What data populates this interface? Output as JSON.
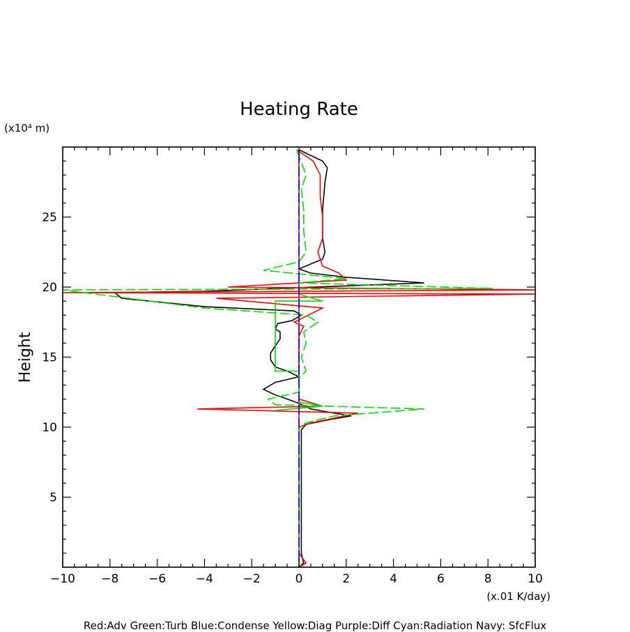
{
  "chart_data": {
    "type": "line",
    "title": "Heating Rate",
    "ylabel": "Height",
    "yunit": "(x10⁴ m)",
    "xunit": "(x.01 K/day)",
    "xlim": [
      -10,
      10
    ],
    "ylim": [
      0,
      30
    ],
    "xticks": [
      -10,
      -8,
      -6,
      -4,
      -2,
      0,
      2,
      4,
      6,
      8,
      10
    ],
    "yticks": [
      5,
      10,
      15,
      20,
      25
    ],
    "grid": false,
    "legend_text": "Red:Adv  Green:Turb  Blue:Condense  Yellow:Diag  Purple:Diff  Cyan:Radiation  Navy: SfcFlux",
    "colors": {
      "black": "#000000",
      "red": "#ff0000",
      "green": "#00dd00",
      "blue": "#0000ff"
    },
    "series": [
      {
        "color": "#000000",
        "dash": "solid",
        "points": [
          [
            0,
            0
          ],
          [
            0.2,
            0.3
          ],
          [
            0.1,
            1
          ],
          [
            0.1,
            5
          ],
          [
            0.1,
            9
          ],
          [
            0.1,
            9.8
          ],
          [
            0.3,
            10.2
          ],
          [
            1.5,
            10.6
          ],
          [
            2.2,
            10.8
          ],
          [
            1.5,
            11
          ],
          [
            0.5,
            11.3
          ],
          [
            0,
            11.7
          ],
          [
            -0.5,
            12
          ],
          [
            -1,
            12.3
          ],
          [
            -1.5,
            12.7
          ],
          [
            -1,
            13.2
          ],
          [
            0,
            13.6
          ],
          [
            -0.5,
            14
          ],
          [
            -1,
            14.3
          ],
          [
            -1.2,
            14.8
          ],
          [
            -1.2,
            15.3
          ],
          [
            -1,
            15.8
          ],
          [
            -0.8,
            16.3
          ],
          [
            -0.8,
            16.8
          ],
          [
            -1,
            17
          ],
          [
            -0.9,
            17.4
          ],
          [
            -0.3,
            17.6
          ],
          [
            0.1,
            18
          ],
          [
            -0.2,
            18.3
          ],
          [
            -4,
            18.6
          ],
          [
            -7.5,
            19.2
          ],
          [
            -7.8,
            19.6
          ],
          [
            -4,
            19.7
          ],
          [
            5.3,
            20.3
          ],
          [
            2,
            20.7
          ],
          [
            0.5,
            21
          ],
          [
            0,
            21.3
          ],
          [
            1,
            22
          ],
          [
            1.1,
            22.5
          ],
          [
            1,
            23.5
          ],
          [
            1,
            25.5
          ],
          [
            1.1,
            27.5
          ],
          [
            1.2,
            28.5
          ],
          [
            1,
            29
          ],
          [
            0.5,
            29.4
          ],
          [
            0,
            29.8
          ]
        ]
      },
      {
        "color": "#ff0000",
        "dash": "solid",
        "points": [
          [
            0,
            0
          ],
          [
            0.3,
            0.3
          ],
          [
            0,
            1
          ],
          [
            0,
            9
          ],
          [
            0,
            10
          ],
          [
            0.5,
            10.3
          ],
          [
            2.5,
            11
          ],
          [
            -4.3,
            11.3
          ],
          [
            1,
            11.5
          ],
          [
            0,
            12
          ],
          [
            0,
            13.5
          ],
          [
            0,
            14.5
          ],
          [
            0,
            15.5
          ],
          [
            0,
            16.5
          ],
          [
            0.2,
            17.2
          ],
          [
            -0.2,
            17.5
          ],
          [
            1,
            18.5
          ],
          [
            -3.5,
            19.2
          ],
          [
            10,
            19.5
          ],
          [
            -10,
            19.6
          ],
          [
            10,
            19.8
          ],
          [
            -3,
            20
          ],
          [
            2,
            20.5
          ],
          [
            1.7,
            21
          ],
          [
            1,
            21.5
          ],
          [
            0.8,
            22.5
          ],
          [
            1,
            23.5
          ],
          [
            1,
            25
          ],
          [
            0.9,
            26.5
          ],
          [
            0.9,
            28
          ],
          [
            0.6,
            29
          ],
          [
            -0.1,
            29.8
          ]
        ]
      },
      {
        "color": "#ff0000",
        "dash": "solid",
        "points": [
          [
            0,
            0
          ],
          [
            0,
            29.8
          ]
        ]
      },
      {
        "color": "#00dd00",
        "dash": "solid",
        "points": [
          [
            -1,
            11.2
          ],
          [
            1,
            11.5
          ],
          [
            0,
            11.8
          ],
          [
            0,
            14
          ],
          [
            -1,
            14
          ],
          [
            -1,
            19
          ],
          [
            1,
            19
          ],
          [
            0,
            19.5
          ]
        ]
      },
      {
        "color": "#00dd00",
        "dash": "dashed",
        "points": [
          [
            0,
            0
          ],
          [
            0,
            10
          ],
          [
            0.3,
            10.3
          ],
          [
            1.5,
            10.8
          ],
          [
            5.3,
            11.3
          ],
          [
            -1,
            11.6
          ],
          [
            -1.3,
            12
          ],
          [
            0,
            12.5
          ],
          [
            0,
            13.5
          ],
          [
            0.3,
            14
          ],
          [
            0.1,
            15
          ],
          [
            0.3,
            16
          ],
          [
            0.2,
            16.8
          ],
          [
            0.8,
            17.5
          ],
          [
            0.3,
            18
          ],
          [
            -4,
            18.5
          ],
          [
            -10,
            19.8
          ],
          [
            8.2,
            19.9
          ],
          [
            0,
            20.3
          ],
          [
            2,
            20.6
          ],
          [
            -1.5,
            21.2
          ],
          [
            0,
            21.8
          ],
          [
            0.3,
            22.5
          ],
          [
            0.2,
            24
          ],
          [
            0.2,
            25.5
          ],
          [
            0.1,
            27
          ],
          [
            0.3,
            28
          ],
          [
            -0.1,
            29.8
          ]
        ]
      },
      {
        "color": "#0000ff",
        "dash": "dashed",
        "points": [
          [
            0,
            0.5
          ],
          [
            0,
            29.8
          ]
        ]
      }
    ]
  }
}
